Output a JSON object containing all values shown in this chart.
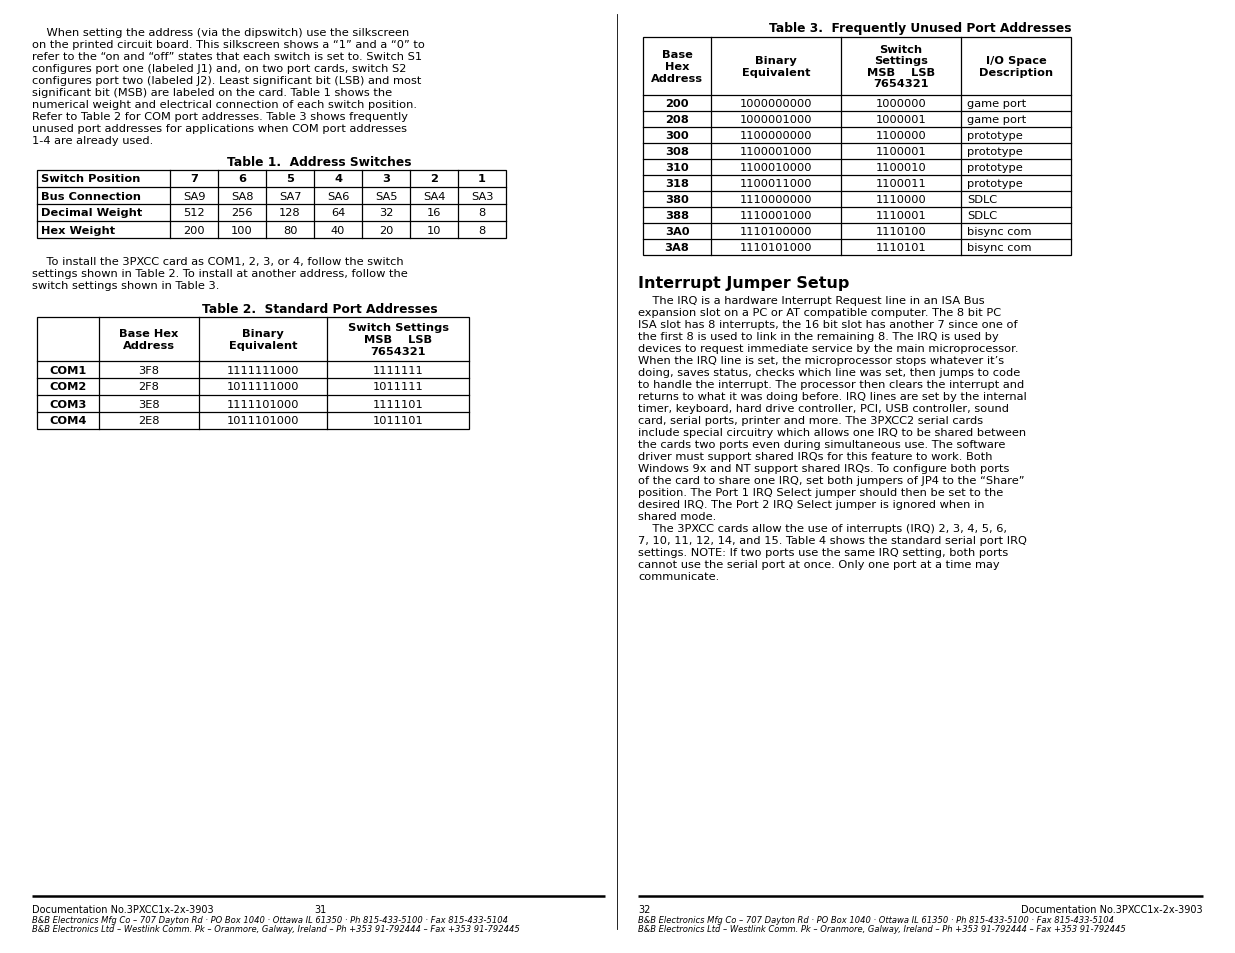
{
  "bg_color": "#ffffff",
  "intro_lines": [
    "    When setting the address (via the dipswitch) use the silkscreen",
    "on the printed circuit board. This silkscreen shows a “1” and a “0” to",
    "refer to the “on and “off” states that each switch is set to. Switch S1",
    "configures port one (labeled J1) and, on two port cards, switch S2",
    "configures port two (labeled J2). Least significant bit (LSB) and most",
    "significant bit (MSB) are labeled on the card. Table 1 shows the",
    "numerical weight and electrical connection of each switch position.",
    "Refer to Table 2 for COM port addresses. Table 3 shows frequently",
    "unused port addresses for applications when COM port addresses",
    "1-4 are already used."
  ],
  "table1_title": "Table 1.  Address Switches",
  "table1_headers": [
    "Switch Position",
    "7",
    "6",
    "5",
    "4",
    "3",
    "2",
    "1"
  ],
  "table1_row1_label": "Bus Connection",
  "table1_row1_data": [
    "SA9",
    "SA8",
    "SA7",
    "SA6",
    "SA5",
    "SA4",
    "SA3"
  ],
  "table1_row2_label": "Decimal Weight",
  "table1_row2_data": [
    "512",
    "256",
    "128",
    "64",
    "32",
    "16",
    "8"
  ],
  "table1_row3_label": "Hex Weight",
  "table1_row3_data": [
    "200",
    "100",
    "80",
    "40",
    "20",
    "10",
    "8"
  ],
  "middle_lines": [
    "    To install the 3PXCC card as COM1, 2, 3, or 4, follow the switch",
    "settings shown in Table 2. To install at another address, follow the",
    "switch settings shown in Table 3."
  ],
  "table2_title": "Table 2.  Standard Port Addresses",
  "table2_col0_header": "",
  "table2_col1_header": "Base Hex\nAddress",
  "table2_col2_header": "Binary\nEquivalent",
  "table2_col3_header": "Switch Settings\nMSB    LSB\n7654321",
  "table2_rows": [
    [
      "COM1",
      "3F8",
      "1111111000",
      "1111111"
    ],
    [
      "COM2",
      "2F8",
      "1011111000",
      "1011111"
    ],
    [
      "COM3",
      "3E8",
      "1111101000",
      "1111101"
    ],
    [
      "COM4",
      "2E8",
      "1011101000",
      "1011101"
    ]
  ],
  "table3_title": "Table 3.  Frequently Unused Port Addresses",
  "table3_col0_header": "Base\nHex\nAddress",
  "table3_col1_header": "Binary\nEquivalent",
  "table3_col2_header": "Switch\nSettings\nMSB    LSB\n7654321",
  "table3_col3_header": "I/O Space\nDescription",
  "table3_rows": [
    [
      "200",
      "1000000000",
      "1000000",
      "game port"
    ],
    [
      "208",
      "1000001000",
      "1000001",
      "game port"
    ],
    [
      "300",
      "1100000000",
      "1100000",
      "prototype"
    ],
    [
      "308",
      "1100001000",
      "1100001",
      "prototype"
    ],
    [
      "310",
      "1100010000",
      "1100010",
      "prototype"
    ],
    [
      "318",
      "1100011000",
      "1100011",
      "prototype"
    ],
    [
      "380",
      "1110000000",
      "1110000",
      "SDLC"
    ],
    [
      "388",
      "1110001000",
      "1110001",
      "SDLC"
    ],
    [
      "3A0",
      "1110100000",
      "1110100",
      "bisync com"
    ],
    [
      "3A8",
      "1110101000",
      "1110101",
      "bisync com"
    ]
  ],
  "interrupt_title": "Interrupt Jumper Setup",
  "interrupt_lines": [
    "    The IRQ is a hardware Interrupt Request line in an ISA Bus",
    "expansion slot on a PC or AT compatible computer. The 8 bit PC",
    "ISA slot has 8 interrupts, the 16 bit slot has another 7 since one of",
    "the first 8 is used to link in the remaining 8. The IRQ is used by",
    "devices to request immediate service by the main microprocessor.",
    "When the IRQ line is set, the microprocessor stops whatever it’s",
    "doing, saves status, checks which line was set, then jumps to code",
    "to handle the interrupt. The processor then clears the interrupt and",
    "returns to what it was doing before. IRQ lines are set by the internal",
    "timer, keyboard, hard drive controller, PCI, USB controller, sound",
    "card, serial ports, printer and more. The 3PXCC2 serial cards",
    "include special circuitry which allows one IRQ to be shared between",
    "the cards two ports even during simultaneous use. The software",
    "driver must support shared IRQs for this feature to work. Both",
    "Windows 9x and NT support shared IRQs. To configure both ports",
    "of the card to share one IRQ, set both jumpers of JP4 to the “Share”",
    "position. The Port 1 IRQ Select jumper should then be set to the",
    "desired IRQ. The Port 2 IRQ Select jumper is ignored when in",
    "shared mode.",
    "    The 3PXCC cards allow the use of interrupts (IRQ) 2, 3, 4, 5, 6,",
    "7, 10, 11, 12, 14, and 15. Table 4 shows the standard serial port IRQ",
    "settings. NOTE: If two ports use the same IRQ setting, both ports",
    "cannot use the serial port at once. Only one port at a time may",
    "communicate."
  ],
  "footer_left_page": "31",
  "footer_left_doc": "Documentation No.3PXCC1x-2x-3903",
  "footer_left_line2": "B&B Electronics Mfg Co – 707 Dayton Rd · PO Box 1040 · Ottawa IL 61350 · Ph 815-433-5100 · Fax 815-433-5104",
  "footer_left_line3": "B&B Electronics Ltd – Westlink Comm. Pk – Oranmore, Galway, Ireland – Ph +353 91-792444 – Fax +353 91-792445",
  "footer_right_page": "32",
  "footer_right_doc": "Documentation No.3PXCC1x-2x-3903",
  "footer_right_line2": "B&B Electronics Mfg Co – 707 Dayton Rd · PO Box 1040 · Ottawa IL 61350 · Ph 815-433-5100 · Fax 815-433-5104",
  "footer_right_line3": "B&B Electronics Ltd – Westlink Comm. Pk – Oranmore, Galway, Ireland – Ph +353 91-792444 – Fax +353 91-792445"
}
